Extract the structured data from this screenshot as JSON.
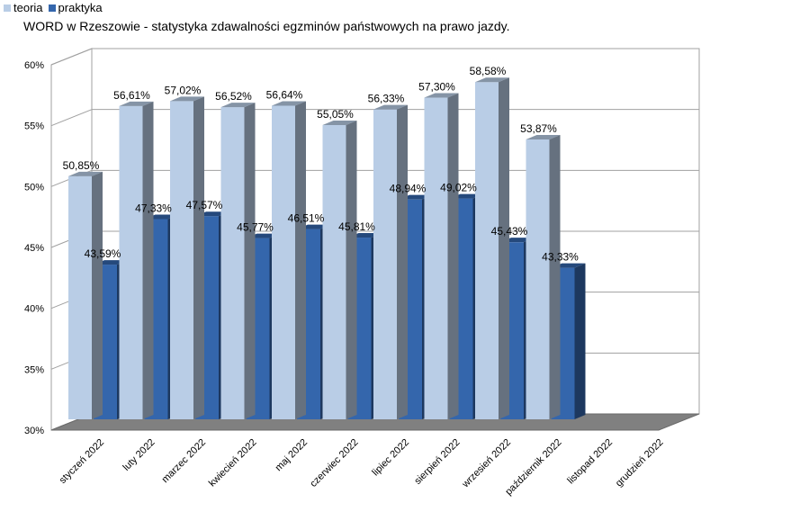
{
  "chart_data": {
    "type": "bar",
    "title": "WORD w Rzeszowie - statystyka zdawalności egzminów państwowych na prawo jazdy.",
    "categories": [
      "styczeń 2022",
      "luty 2022",
      "marzec 2022",
      "kwiecień 2022",
      "maj 2022",
      "czerwiec 2022",
      "lipiec 2022",
      "sierpień 2022",
      "wrzesień 2022",
      "październik 2022",
      "listopad 2022",
      "grudzień 2022"
    ],
    "series": [
      {
        "name": "teoria",
        "color": "#b9cde6",
        "values": [
          50.85,
          56.61,
          57.02,
          56.52,
          56.64,
          55.05,
          56.33,
          57.3,
          58.58,
          53.87,
          null,
          null
        ],
        "labels": [
          "50,85%",
          "56,61%",
          "57,02%",
          "56,52%",
          "56,64%",
          "55,05%",
          "56,33%",
          "57,30%",
          "58,58%",
          "53,87%",
          "",
          ""
        ]
      },
      {
        "name": "praktyka",
        "color": "#3466ac",
        "values": [
          43.59,
          47.33,
          47.57,
          45.77,
          46.51,
          45.81,
          48.94,
          49.02,
          45.43,
          43.33,
          null,
          null
        ],
        "labels": [
          "43,59%",
          "47,33%",
          "47,57%",
          "45,77%",
          "46,51%",
          "45,81%",
          "48,94%",
          "49,02%",
          "45,43%",
          "43,33%",
          "",
          ""
        ]
      }
    ],
    "ylim": [
      30,
      60
    ],
    "yticks": [
      "30%",
      "35%",
      "40%",
      "45%",
      "50%",
      "55%",
      "60%"
    ],
    "ytick_values": [
      30,
      35,
      40,
      45,
      50,
      55,
      60
    ],
    "xlabel": "",
    "ylabel": "",
    "grid": true,
    "legend": "top-left",
    "style": "3d-columns"
  }
}
